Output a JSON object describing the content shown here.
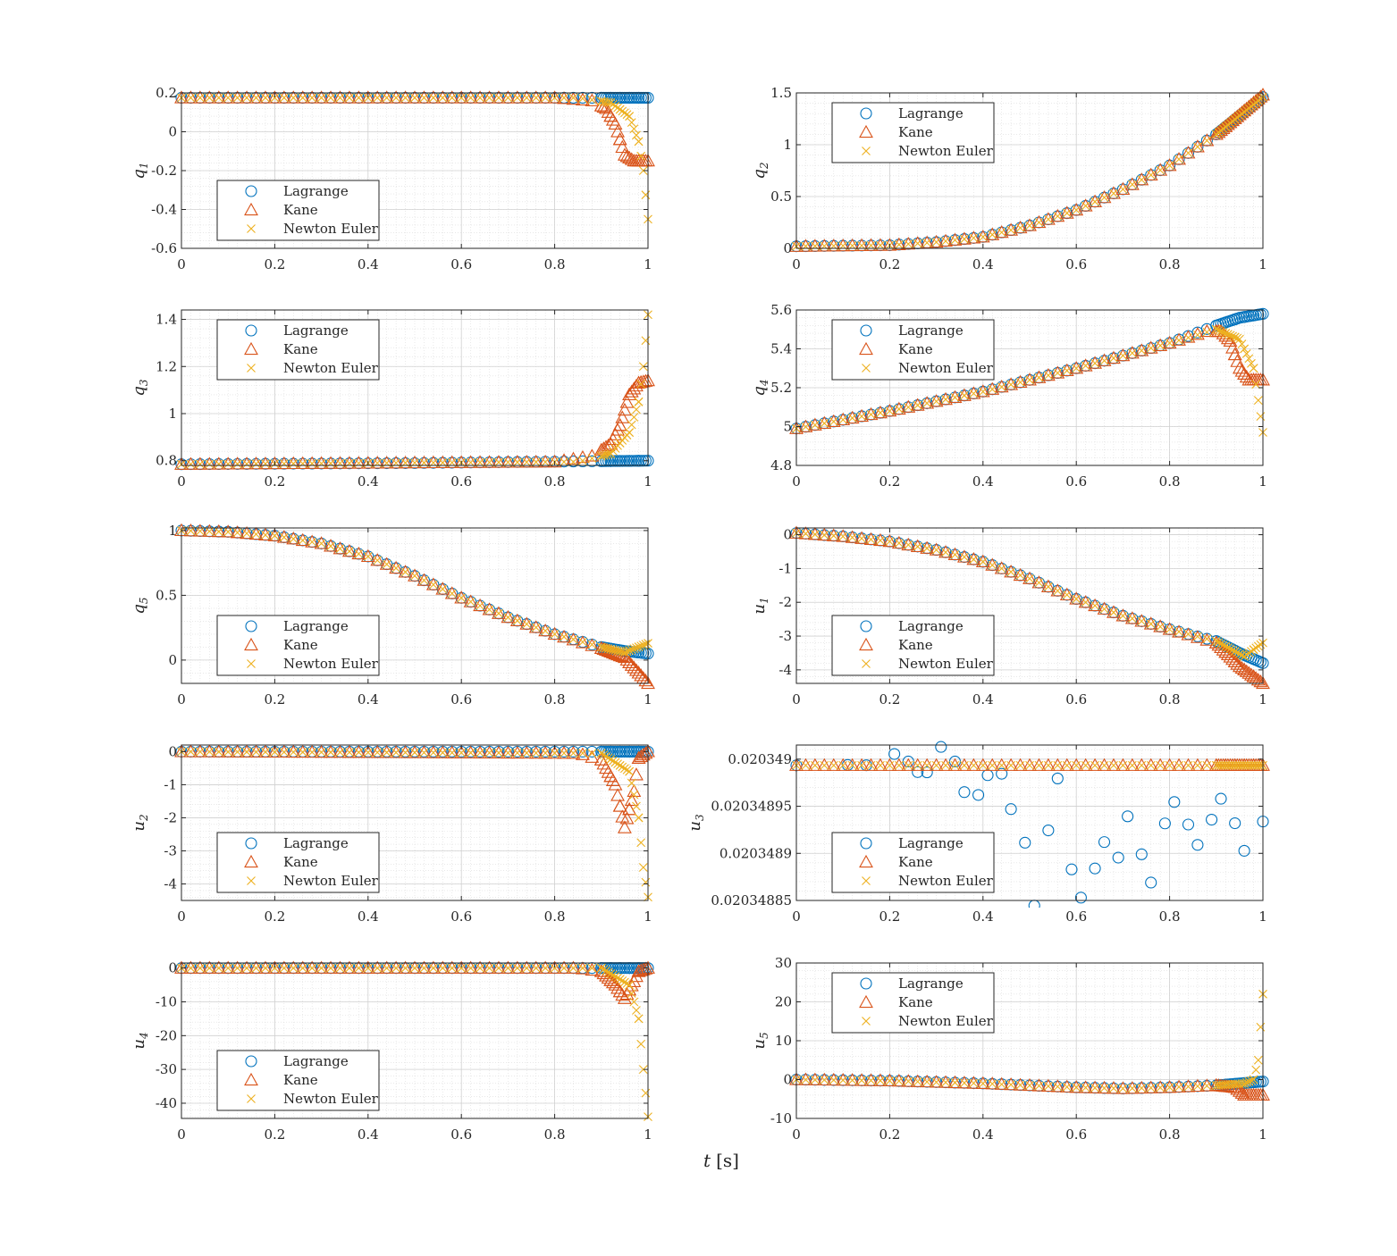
{
  "figure": {
    "xlabel_var": "t",
    "xlabel_unit": "[s]"
  },
  "legend_entries": [
    "Lagrange",
    "Kane",
    "Newton Euler"
  ],
  "colors": {
    "Lagrange": "#0072BD",
    "Kane": "#D95319",
    "Newton Euler": "#EDB120",
    "axis": "#262626",
    "grid": "#dcdcdc"
  },
  "chart_data": [
    {
      "type": "scatter",
      "ylabel_sym": "q",
      "ylabel_sub": "1",
      "xlim": [
        0,
        1
      ],
      "ylim": [
        -0.6,
        0.2
      ],
      "xticks": [
        "0",
        "0.2",
        "0.4",
        "0.6",
        "0.8",
        "1"
      ],
      "yticks": [
        "0.2",
        "0",
        "-0.2",
        "-0.4",
        "-0.6"
      ],
      "ytick_values": [
        0.2,
        0,
        -0.2,
        -0.4,
        -0.6
      ],
      "legend": "bottom-left",
      "series": [
        {
          "name": "Lagrange",
          "x": [
            0,
            0.5,
            1
          ],
          "y": [
            0.175,
            0.175,
            0.175
          ]
        },
        {
          "name": "Kane",
          "x": [
            0,
            0.8,
            0.88,
            0.91,
            0.93,
            0.95,
            0.97,
            1
          ],
          "y": [
            0.175,
            0.175,
            0.16,
            0.12,
            0.04,
            -0.12,
            -0.15,
            -0.15
          ]
        },
        {
          "name": "Newton Euler",
          "x": [
            0,
            0.85,
            0.92,
            0.96,
            0.98,
            0.99,
            1
          ],
          "y": [
            0.175,
            0.175,
            0.15,
            0.08,
            -0.05,
            -0.2,
            -0.45
          ]
        }
      ]
    },
    {
      "type": "scatter",
      "ylabel_sym": "q",
      "ylabel_sub": "2",
      "xlim": [
        0,
        1
      ],
      "ylim": [
        0,
        1.5
      ],
      "xticks": [
        "0",
        "0.2",
        "0.4",
        "0.6",
        "0.8",
        "1"
      ],
      "yticks": [
        "1.5",
        "1",
        "0.5",
        "0"
      ],
      "ytick_values": [
        1.5,
        1,
        0.5,
        0
      ],
      "legend": "top-left",
      "series": [
        {
          "name": "Lagrange",
          "x": [
            0,
            0.2,
            0.3,
            0.4,
            0.5,
            0.6,
            0.7,
            0.8,
            0.9,
            1
          ],
          "y": [
            0.02,
            0.03,
            0.06,
            0.11,
            0.22,
            0.37,
            0.57,
            0.8,
            1.1,
            1.46
          ]
        },
        {
          "name": "Kane",
          "x": [
            0,
            0.2,
            0.3,
            0.4,
            0.5,
            0.6,
            0.7,
            0.8,
            0.9,
            1
          ],
          "y": [
            0.02,
            0.03,
            0.06,
            0.11,
            0.22,
            0.37,
            0.57,
            0.8,
            1.1,
            1.48
          ]
        },
        {
          "name": "Newton Euler",
          "x": [
            0,
            0.2,
            0.3,
            0.4,
            0.5,
            0.6,
            0.7,
            0.8,
            0.9,
            1
          ],
          "y": [
            0.02,
            0.03,
            0.06,
            0.11,
            0.22,
            0.37,
            0.57,
            0.8,
            1.1,
            1.46
          ]
        }
      ]
    },
    {
      "type": "scatter",
      "ylabel_sym": "q",
      "ylabel_sub": "3",
      "xlim": [
        0,
        1
      ],
      "ylim": [
        0.78,
        1.44
      ],
      "xticks": [
        "0",
        "0.2",
        "0.4",
        "0.6",
        "0.8",
        "1"
      ],
      "yticks": [
        "1.4",
        "1.2",
        "1",
        "0.8"
      ],
      "ytick_values": [
        1.4,
        1.2,
        1,
        0.8
      ],
      "legend": "top-left",
      "series": [
        {
          "name": "Lagrange",
          "x": [
            0,
            0.5,
            1
          ],
          "y": [
            0.785,
            0.79,
            0.8
          ]
        },
        {
          "name": "Kane",
          "x": [
            0,
            0.8,
            0.88,
            0.92,
            0.94,
            0.96,
            0.98,
            1
          ],
          "y": [
            0.785,
            0.795,
            0.82,
            0.87,
            0.95,
            1.08,
            1.13,
            1.14
          ]
        },
        {
          "name": "Newton Euler",
          "x": [
            0,
            0.85,
            0.92,
            0.96,
            0.98,
            0.99,
            1
          ],
          "y": [
            0.785,
            0.795,
            0.83,
            0.92,
            1.05,
            1.2,
            1.42
          ]
        }
      ]
    },
    {
      "type": "scatter",
      "ylabel_sym": "q",
      "ylabel_sub": "4",
      "xlim": [
        0,
        1
      ],
      "ylim": [
        4.8,
        5.6
      ],
      "xticks": [
        "0",
        "0.2",
        "0.4",
        "0.6",
        "0.8",
        "1"
      ],
      "yticks": [
        "5.6",
        "5.4",
        "5.2",
        "5",
        "4.8"
      ],
      "ytick_values": [
        5.6,
        5.4,
        5.2,
        5,
        4.8
      ],
      "legend": "top-left",
      "series": [
        {
          "name": "Lagrange",
          "x": [
            0,
            0.2,
            0.4,
            0.6,
            0.8,
            0.9,
            0.95,
            1
          ],
          "y": [
            4.99,
            5.08,
            5.18,
            5.3,
            5.43,
            5.52,
            5.56,
            5.58
          ]
        },
        {
          "name": "Kane",
          "x": [
            0,
            0.2,
            0.4,
            0.6,
            0.8,
            0.88,
            0.91,
            0.93,
            0.95,
            0.97,
            1
          ],
          "y": [
            4.99,
            5.08,
            5.18,
            5.3,
            5.43,
            5.49,
            5.49,
            5.44,
            5.3,
            5.24,
            5.24
          ]
        },
        {
          "name": "Newton Euler",
          "x": [
            0,
            0.2,
            0.4,
            0.6,
            0.8,
            0.9,
            0.95,
            0.98,
            1
          ],
          "y": [
            4.99,
            5.08,
            5.18,
            5.3,
            5.43,
            5.5,
            5.45,
            5.3,
            4.97
          ]
        }
      ]
    },
    {
      "type": "scatter",
      "ylabel_sym": "q",
      "ylabel_sub": "5",
      "xlim": [
        0,
        1
      ],
      "ylim": [
        -0.18,
        1.02
      ],
      "xticks": [
        "0",
        "0.2",
        "0.4",
        "0.6",
        "0.8",
        "1"
      ],
      "yticks": [
        "1",
        "0.5",
        "0"
      ],
      "ytick_values": [
        1,
        0.5,
        0
      ],
      "legend": "bottom-left",
      "series": [
        {
          "name": "Lagrange",
          "x": [
            0,
            0.1,
            0.2,
            0.3,
            0.4,
            0.5,
            0.6,
            0.7,
            0.8,
            0.9,
            0.95,
            1
          ],
          "y": [
            1,
            0.99,
            0.96,
            0.9,
            0.8,
            0.65,
            0.48,
            0.33,
            0.2,
            0.1,
            0.07,
            0.05
          ]
        },
        {
          "name": "Kane",
          "x": [
            0,
            0.1,
            0.2,
            0.3,
            0.4,
            0.5,
            0.6,
            0.7,
            0.8,
            0.9,
            0.95,
            1
          ],
          "y": [
            1,
            0.99,
            0.96,
            0.9,
            0.8,
            0.65,
            0.48,
            0.33,
            0.2,
            0.09,
            0.02,
            -0.18
          ]
        },
        {
          "name": "Newton Euler",
          "x": [
            0,
            0.1,
            0.2,
            0.3,
            0.4,
            0.5,
            0.6,
            0.7,
            0.8,
            0.9,
            0.95,
            1
          ],
          "y": [
            1,
            0.99,
            0.96,
            0.9,
            0.8,
            0.65,
            0.48,
            0.33,
            0.2,
            0.1,
            0.06,
            0.13
          ]
        }
      ]
    },
    {
      "type": "scatter",
      "ylabel_sym": "u",
      "ylabel_sub": "1",
      "xlim": [
        0,
        1
      ],
      "ylim": [
        -4.4,
        0.2
      ],
      "xticks": [
        "0",
        "0.2",
        "0.4",
        "0.6",
        "0.8",
        "1"
      ],
      "yticks": [
        "0",
        "-1",
        "-2",
        "-3",
        "-4"
      ],
      "ytick_values": [
        0,
        -1,
        -2,
        -3,
        -4
      ],
      "legend": "bottom-left",
      "series": [
        {
          "name": "Lagrange",
          "x": [
            0,
            0.1,
            0.2,
            0.3,
            0.4,
            0.5,
            0.6,
            0.7,
            0.8,
            0.9,
            0.95,
            1
          ],
          "y": [
            0.05,
            -0.05,
            -0.2,
            -0.45,
            -0.8,
            -1.3,
            -1.9,
            -2.4,
            -2.8,
            -3.15,
            -3.5,
            -3.8
          ]
        },
        {
          "name": "Kane",
          "x": [
            0,
            0.1,
            0.2,
            0.3,
            0.4,
            0.5,
            0.6,
            0.7,
            0.8,
            0.9,
            0.95,
            1
          ],
          "y": [
            0.05,
            -0.05,
            -0.2,
            -0.45,
            -0.8,
            -1.3,
            -1.9,
            -2.4,
            -2.8,
            -3.2,
            -3.9,
            -4.4
          ]
        },
        {
          "name": "Newton Euler",
          "x": [
            0,
            0.1,
            0.2,
            0.3,
            0.4,
            0.5,
            0.6,
            0.7,
            0.8,
            0.9,
            0.96,
            1
          ],
          "y": [
            0.05,
            -0.05,
            -0.2,
            -0.45,
            -0.8,
            -1.3,
            -1.9,
            -2.4,
            -2.8,
            -3.15,
            -3.6,
            -3.2
          ]
        }
      ]
    },
    {
      "type": "scatter",
      "ylabel_sym": "u",
      "ylabel_sub": "2",
      "xlim": [
        0,
        1
      ],
      "ylim": [
        -4.5,
        0.2
      ],
      "xticks": [
        "0",
        "0.2",
        "0.4",
        "0.6",
        "0.8",
        "1"
      ],
      "yticks": [
        "0",
        "-1",
        "-2",
        "-3",
        "-4"
      ],
      "ytick_values": [
        0,
        -1,
        -2,
        -3,
        -4
      ],
      "legend": "bottom-left",
      "series": [
        {
          "name": "Lagrange",
          "x": [
            0,
            0.5,
            1
          ],
          "y": [
            0,
            0,
            0
          ]
        },
        {
          "name": "Kane",
          "x": [
            0,
            0.85,
            0.9,
            0.93,
            0.95,
            0.97,
            0.98,
            1
          ],
          "y": [
            0,
            -0.05,
            -0.25,
            -1.0,
            -2.3,
            -1.2,
            -0.2,
            0
          ]
        },
        {
          "name": "Newton Euler",
          "x": [
            0,
            0.9,
            0.96,
            0.98,
            0.99,
            1
          ],
          "y": [
            0,
            -0.05,
            -0.6,
            -2.0,
            -3.5,
            -4.4
          ]
        }
      ]
    },
    {
      "type": "scatter",
      "ylabel_sym": "u",
      "ylabel_sub": "3",
      "xlim": [
        0,
        1
      ],
      "ylim": [
        0.02034885,
        0.020349015
      ],
      "xticks": [
        "0",
        "0.2",
        "0.4",
        "0.6",
        "0.8",
        "1"
      ],
      "yticks": [
        "0.020349",
        "0.02034895",
        "0.0203489",
        "0.02034885"
      ],
      "ytick_values": [
        0.020349,
        0.02034895,
        0.0203489,
        0.02034885
      ],
      "legend": "bottom-left",
      "series": [
        {
          "name": "Lagrange",
          "x": [
            0,
            0.11,
            0.15,
            0.21,
            0.24,
            0.26,
            0.28,
            0.31,
            0.34,
            0.36,
            0.39,
            0.41,
            0.44,
            0.46,
            0.49,
            0.51,
            0.54,
            0.56,
            0.59,
            0.61,
            0.64,
            0.66,
            0.69,
            0.71,
            0.74,
            0.76,
            0.79,
            0.81,
            0.84,
            0.86,
            0.89,
            0.91,
            0.94,
            0.96,
            1
          ],
          "y": [
            0.0203489934,
            0.0203489938,
            0.0203489935,
            0.0203490055,
            0.0203489975,
            0.0203489863,
            0.020348986,
            0.020349013,
            0.0203489975,
            0.020348965,
            0.020348962,
            0.020348983,
            0.0203489845,
            0.020348947,
            0.0203489113,
            0.0203488445,
            0.0203489244,
            0.0203489795,
            0.020348883,
            0.020348853,
            0.020348884,
            0.020348912,
            0.0203488955,
            0.0203489393,
            0.020348899,
            0.020348869,
            0.0203489318,
            0.0203489545,
            0.0203489306,
            0.020348909,
            0.0203489358,
            0.020348958,
            0.020348932,
            0.0203489027,
            0.0203489338
          ]
        },
        {
          "name": "Kane",
          "x": [
            0,
            0.5,
            1
          ],
          "y": [
            0.0203489934,
            0.0203489934,
            0.0203489934
          ]
        },
        {
          "name": "Newton Euler",
          "x": [
            0,
            0.5,
            1
          ],
          "y": [
            0.0203489934,
            0.0203489934,
            0.0203489934
          ]
        }
      ]
    },
    {
      "type": "scatter",
      "ylabel_sym": "u",
      "ylabel_sub": "4",
      "xlim": [
        0,
        1
      ],
      "ylim": [
        -44.5,
        1.5
      ],
      "xticks": [
        "0",
        "0.2",
        "0.4",
        "0.6",
        "0.8",
        "1"
      ],
      "yticks": [
        "0",
        "-10",
        "-20",
        "-30",
        "-40"
      ],
      "ytick_values": [
        0,
        -10,
        -20,
        -30,
        -40
      ],
      "legend": "bottom-left",
      "series": [
        {
          "name": "Lagrange",
          "x": [
            0,
            0.5,
            1
          ],
          "y": [
            0,
            0,
            0
          ]
        },
        {
          "name": "Kane",
          "x": [
            0,
            0.85,
            0.9,
            0.93,
            0.95,
            0.97,
            0.98,
            1
          ],
          "y": [
            0,
            0,
            -1,
            -5,
            -9,
            -4,
            -1,
            0
          ]
        },
        {
          "name": "Newton Euler",
          "x": [
            0,
            0.9,
            0.96,
            0.98,
            0.99,
            1
          ],
          "y": [
            0,
            0,
            -5,
            -15,
            -30,
            -44
          ]
        }
      ]
    },
    {
      "type": "scatter",
      "ylabel_sym": "u",
      "ylabel_sub": "5",
      "xlim": [
        0,
        1
      ],
      "ylim": [
        -10,
        30
      ],
      "xticks": [
        "0",
        "0.2",
        "0.4",
        "0.6",
        "0.8",
        "1"
      ],
      "yticks": [
        "30",
        "20",
        "10",
        "0",
        "-10"
      ],
      "ytick_values": [
        30,
        20,
        10,
        0,
        -10
      ],
      "legend": "top-left",
      "series": [
        {
          "name": "Lagrange",
          "x": [
            0,
            0.2,
            0.4,
            0.6,
            0.7,
            0.8,
            0.9,
            0.95,
            1
          ],
          "y": [
            0,
            -0.3,
            -1,
            -2,
            -2.3,
            -2,
            -1.5,
            -1,
            -0.5
          ]
        },
        {
          "name": "Kane",
          "x": [
            0,
            0.2,
            0.4,
            0.6,
            0.7,
            0.8,
            0.9,
            0.94,
            0.96,
            1
          ],
          "y": [
            0,
            -0.3,
            -1,
            -2,
            -2.3,
            -2,
            -1.5,
            -2,
            -4,
            -4
          ]
        },
        {
          "name": "Newton Euler",
          "x": [
            0,
            0.2,
            0.4,
            0.6,
            0.7,
            0.8,
            0.9,
            0.96,
            0.98,
            0.99,
            1
          ],
          "y": [
            0,
            -0.3,
            -1,
            -2,
            -2.3,
            -2,
            -1.5,
            -1,
            0,
            5,
            22
          ]
        }
      ]
    }
  ]
}
